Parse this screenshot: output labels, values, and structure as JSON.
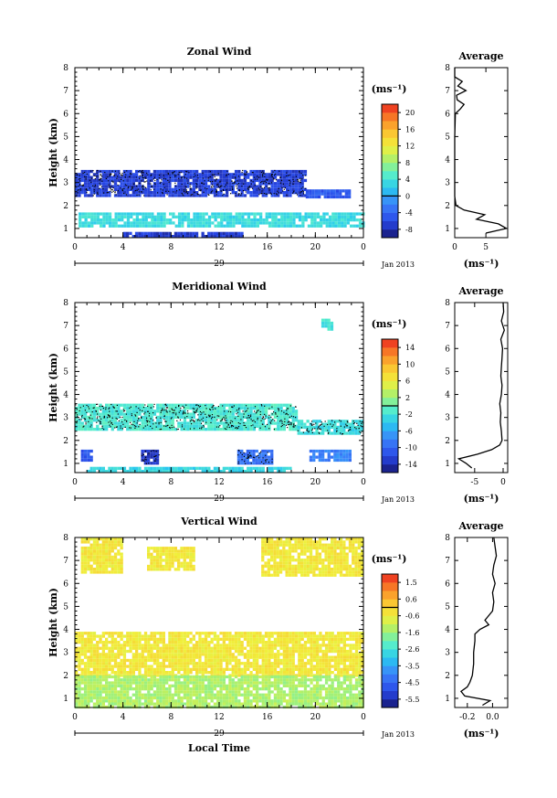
{
  "figure": {
    "x_axis_label": "Local Time",
    "date_label": "Jan 2013",
    "day_label": "29"
  },
  "chart_data": [
    {
      "type": "heatmap",
      "title": "Zonal Wind",
      "ylabel": "Height (km)",
      "xticks": [
        "0",
        "4",
        "8",
        "12",
        "16",
        "20",
        "0"
      ],
      "yticks": [
        "1",
        "2",
        "3",
        "4",
        "5",
        "6",
        "7",
        "8"
      ],
      "xlim": [
        0,
        24
      ],
      "ylim": [
        0.6,
        8
      ],
      "colorbar": {
        "unit": "(ms⁻¹)",
        "ticks": [
          "-8",
          "-4",
          "0",
          "4",
          "8",
          "12",
          "16",
          "20"
        ],
        "min": -10,
        "max": 22
      },
      "regions": [
        {
          "t0": 0,
          "t1": 19.2,
          "h0": 2.45,
          "h1": 3.55,
          "value": -6.5
        },
        {
          "t0": 19.2,
          "t1": 22.8,
          "h0": 2.35,
          "h1": 2.7,
          "value": -5
        },
        {
          "t0": 0.3,
          "t1": 24,
          "h0": 1.05,
          "h1": 1.7,
          "value": 3.5
        },
        {
          "t0": 4,
          "t1": 14,
          "h0": 0.6,
          "h1": 0.85,
          "value": -7
        }
      ],
      "average": {
        "title": "Average",
        "xlabel": "(ms⁻¹)",
        "xticks": [
          "0",
          "5"
        ],
        "xlim": [
          0,
          8.5
        ],
        "heights": [
          0.8,
          1.0,
          1.2,
          1.4,
          1.6,
          1.8,
          2.0,
          2.2,
          2.4,
          2.8,
          3.2,
          3.6,
          4.0,
          5.0,
          6.0,
          6.2,
          6.4,
          6.6,
          6.8,
          7.0,
          7.2,
          7.4,
          7.6,
          8.0
        ],
        "values": [
          5.0,
          8.3,
          7.0,
          3.5,
          4.8,
          1.5,
          0.2,
          0.1,
          0.0,
          0.0,
          0.0,
          0.0,
          0.0,
          0.0,
          0.1,
          0.9,
          1.5,
          0.4,
          0.3,
          1.8,
          0.5,
          1.2,
          0.0,
          0.0
        ]
      }
    },
    {
      "type": "heatmap",
      "title": "Meridional Wind",
      "ylabel": "Height (km)",
      "xticks": [
        "0",
        "4",
        "8",
        "12",
        "16",
        "20",
        "0"
      ],
      "yticks": [
        "1",
        "2",
        "3",
        "4",
        "5",
        "6",
        "7",
        "8"
      ],
      "xlim": [
        0,
        24
      ],
      "ylim": [
        0.6,
        8
      ],
      "colorbar": {
        "unit": "(ms⁻¹)",
        "ticks": [
          "-14",
          "-10",
          "-6",
          "-2",
          "2",
          "6",
          "10",
          "14"
        ],
        "min": -16,
        "max": 16
      },
      "regions": [
        {
          "t0": 0,
          "t1": 18.5,
          "h0": 2.5,
          "h1": 3.6,
          "value": -1.5
        },
        {
          "t0": 18.5,
          "t1": 24,
          "h0": 2.3,
          "h1": 2.9,
          "value": -2.5
        },
        {
          "t0": 0.5,
          "t1": 1.5,
          "h0": 1.2,
          "h1": 1.6,
          "value": -11
        },
        {
          "t0": 5.5,
          "t1": 7.0,
          "h0": 1.0,
          "h1": 1.6,
          "value": -13
        },
        {
          "t0": 13.5,
          "t1": 16.5,
          "h0": 1.0,
          "h1": 1.6,
          "value": -9
        },
        {
          "t0": 19.5,
          "t1": 23.0,
          "h0": 1.1,
          "h1": 1.6,
          "value": -8
        },
        {
          "t0": 1.0,
          "t1": 18.0,
          "h0": 0.65,
          "h1": 0.85,
          "value": -3
        },
        {
          "t0": 20.5,
          "t1": 21.5,
          "h0": 6.8,
          "h1": 7.3,
          "value": -2
        }
      ],
      "average": {
        "title": "Average",
        "xlabel": "(ms⁻¹)",
        "xticks": [
          "-5",
          "0"
        ],
        "xlim": [
          -8.5,
          0.8
        ],
        "heights": [
          0.8,
          1.0,
          1.2,
          1.4,
          1.6,
          1.8,
          2.0,
          2.4,
          2.8,
          3.2,
          3.6,
          4.0,
          4.4,
          4.8,
          5.2,
          5.6,
          6.0,
          6.4,
          6.8,
          7.2,
          7.6,
          8.0
        ],
        "values": [
          -5.5,
          -6.5,
          -7.8,
          -4.5,
          -2.0,
          -0.6,
          -0.2,
          -0.3,
          -0.5,
          -0.4,
          -0.6,
          -0.3,
          -0.2,
          -0.4,
          -0.3,
          -0.2,
          -0.1,
          -0.4,
          0.2,
          -0.3,
          0.1,
          0.0
        ]
      }
    },
    {
      "type": "heatmap",
      "title": "Vertical Wind",
      "ylabel": "Height (km)",
      "xticks": [
        "0",
        "4",
        "8",
        "12",
        "16",
        "20",
        "0"
      ],
      "yticks": [
        "1",
        "2",
        "3",
        "4",
        "5",
        "6",
        "7",
        "8"
      ],
      "xlim": [
        0,
        24
      ],
      "ylim": [
        0.6,
        8
      ],
      "colorbar": {
        "unit": "(ms⁻¹)",
        "ticks": [
          "-5.5",
          "-4.5",
          "-3.5",
          "-2.6",
          "-1.6",
          "-0.6",
          "0.6",
          "1.5"
        ],
        "min": -6,
        "max": 2
      },
      "regions": [
        {
          "t0": 0,
          "t1": 24,
          "h0": 2.0,
          "h1": 3.9,
          "value": -0.4
        },
        {
          "t0": 0,
          "t1": 24,
          "h0": 0.6,
          "h1": 2.0,
          "value": -1.3
        },
        {
          "t0": 0.5,
          "t1": 4.0,
          "h0": 6.5,
          "h1": 8.0,
          "value": -0.4
        },
        {
          "t0": 6.0,
          "t1": 10.0,
          "h0": 6.6,
          "h1": 7.6,
          "value": -0.4
        },
        {
          "t0": 15.5,
          "t1": 24,
          "h0": 6.4,
          "h1": 8.0,
          "value": -0.4
        }
      ],
      "average": {
        "title": "Average",
        "xlabel": "(ms⁻¹)",
        "xticks": [
          "-0.2",
          "0.0"
        ],
        "xlim": [
          -0.3,
          0.12
        ],
        "heights": [
          0.7,
          0.9,
          1.1,
          1.3,
          1.5,
          1.7,
          2.0,
          2.5,
          3.0,
          3.5,
          3.8,
          4.0,
          4.2,
          4.4,
          4.8,
          5.2,
          5.6,
          6.0,
          6.4,
          6.8,
          7.2,
          7.6,
          8.0
        ],
        "values": [
          -0.08,
          -0.02,
          -0.22,
          -0.25,
          -0.2,
          -0.18,
          -0.16,
          -0.15,
          -0.15,
          -0.14,
          -0.14,
          -0.1,
          -0.03,
          -0.06,
          0.0,
          0.01,
          0.0,
          0.02,
          0.0,
          0.01,
          0.03,
          0.02,
          0.01
        ]
      }
    }
  ]
}
